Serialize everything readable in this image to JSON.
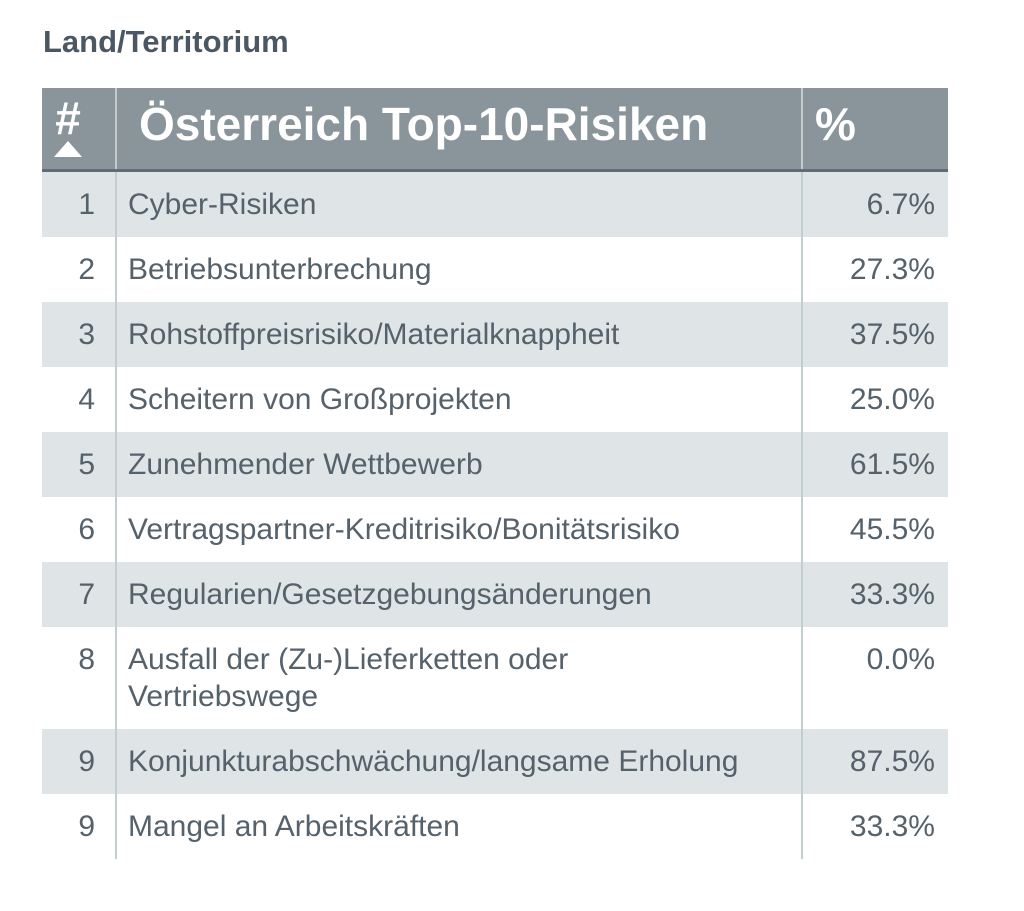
{
  "section_label": "Land/Territorium",
  "colors": {
    "header_bg": "#8a959b",
    "header_text": "#ffffff",
    "header_bottom_border": "#626c72",
    "row_alt_bg": "#dfe5e6",
    "row_bg": "#ffffff",
    "row_text": "#55616b",
    "column_divider": "#c3ced1",
    "title_text": "#4b5863"
  },
  "chart_data": {
    "type": "table",
    "title": "Österreich Top-10-Risiken",
    "section_label": "Land/Territorium",
    "columns": [
      "#",
      "Österreich Top-10-Risiken",
      "%"
    ],
    "sort": {
      "column": "#",
      "direction": "ascending"
    },
    "rows": [
      {
        "rank": "1",
        "risk": "Cyber-Risiken",
        "percent": "6.7%",
        "value": 6.7
      },
      {
        "rank": "2",
        "risk": "Betriebsunterbrechung",
        "percent": "27.3%",
        "value": 27.3
      },
      {
        "rank": "3",
        "risk": "Rohstoffpreisrisiko/Materialknappheit",
        "percent": "37.5%",
        "value": 37.5
      },
      {
        "rank": "4",
        "risk": "Scheitern von Großprojekten",
        "percent": "25.0%",
        "value": 25.0
      },
      {
        "rank": "5",
        "risk": "Zunehmender Wettbewerb",
        "percent": "61.5%",
        "value": 61.5
      },
      {
        "rank": "6",
        "risk": "Vertragspartner-Kreditrisiko/Bonitätsrisiko",
        "percent": "45.5%",
        "value": 45.5
      },
      {
        "rank": "7",
        "risk": "Regularien/Gesetzgebungsänderungen",
        "percent": "33.3%",
        "value": 33.3
      },
      {
        "rank": "8",
        "risk": "Ausfall der (Zu-)Lieferketten oder\nVertriebswege",
        "percent": "0.0%",
        "value": 0.0
      },
      {
        "rank": "9",
        "risk": "Konjunkturabschwächung/langsame Erholung",
        "percent": "87.5%",
        "value": 87.5
      },
      {
        "rank": "9",
        "risk": "Mangel an Arbeitskräften",
        "percent": "33.3%",
        "value": 33.3
      }
    ]
  }
}
